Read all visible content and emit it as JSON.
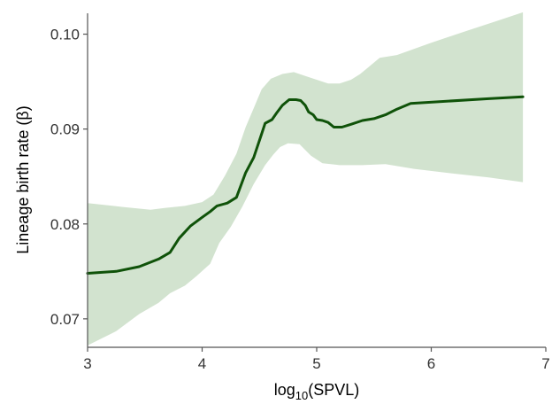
{
  "chart_data": {
    "type": "line",
    "title": "",
    "xlabel": {
      "prefix": "log",
      "subscript": "10",
      "suffix": "(SPVL)"
    },
    "ylabel": "Lineage birth rate (β)",
    "xlim": [
      3,
      7
    ],
    "ylim": [
      0.067,
      0.1022
    ],
    "xticks": [
      3,
      4,
      5,
      6,
      7
    ],
    "yticks": [
      0.07,
      0.08,
      0.09,
      0.1
    ],
    "ytick_labels": [
      "0.07",
      "0.08",
      "0.09",
      "0.10"
    ],
    "grid": false,
    "colors": {
      "line": "#0f5209",
      "band": "#d2e3cf",
      "axis": "#555555"
    },
    "series": [
      {
        "values": [
          [
            3.0,
            0.0748
          ],
          [
            3.25,
            0.075
          ],
          [
            3.45,
            0.0755
          ],
          [
            3.62,
            0.0763
          ],
          [
            3.72,
            0.077
          ],
          [
            3.8,
            0.0785
          ],
          [
            3.9,
            0.0798
          ],
          [
            4.0,
            0.0807
          ],
          [
            4.07,
            0.0813
          ],
          [
            4.13,
            0.0819
          ],
          [
            4.22,
            0.0822
          ],
          [
            4.3,
            0.0828
          ],
          [
            4.38,
            0.0854
          ],
          [
            4.45,
            0.087
          ],
          [
            4.52,
            0.0895
          ],
          [
            4.55,
            0.0906
          ],
          [
            4.61,
            0.091
          ],
          [
            4.65,
            0.0917
          ],
          [
            4.7,
            0.0925
          ],
          [
            4.76,
            0.0931
          ],
          [
            4.82,
            0.0931
          ],
          [
            4.86,
            0.093
          ],
          [
            4.9,
            0.0925
          ],
          [
            4.93,
            0.0918
          ],
          [
            4.97,
            0.0915
          ],
          [
            5.0,
            0.091
          ],
          [
            5.05,
            0.0909
          ],
          [
            5.1,
            0.0907
          ],
          [
            5.15,
            0.0902
          ],
          [
            5.22,
            0.0902
          ],
          [
            5.3,
            0.0905
          ],
          [
            5.4,
            0.0909
          ],
          [
            5.5,
            0.0911
          ],
          [
            5.6,
            0.0915
          ],
          [
            5.7,
            0.0921
          ],
          [
            5.82,
            0.0927
          ],
          [
            6.5,
            0.0932
          ],
          [
            6.8,
            0.0934
          ]
        ],
        "lower": [
          [
            3.0,
            0.0672
          ],
          [
            3.25,
            0.0687
          ],
          [
            3.45,
            0.0705
          ],
          [
            3.62,
            0.0717
          ],
          [
            3.72,
            0.0727
          ],
          [
            3.85,
            0.0735
          ],
          [
            3.95,
            0.0745
          ],
          [
            4.07,
            0.0758
          ],
          [
            4.15,
            0.078
          ],
          [
            4.25,
            0.0797
          ],
          [
            4.35,
            0.0818
          ],
          [
            4.45,
            0.0842
          ],
          [
            4.55,
            0.0862
          ],
          [
            4.62,
            0.0873
          ],
          [
            4.68,
            0.0881
          ],
          [
            4.75,
            0.0885
          ],
          [
            4.85,
            0.0884
          ],
          [
            4.95,
            0.0872
          ],
          [
            5.05,
            0.0864
          ],
          [
            5.2,
            0.0862
          ],
          [
            5.4,
            0.0862
          ],
          [
            5.6,
            0.0863
          ],
          [
            5.85,
            0.0858
          ],
          [
            6.2,
            0.0853
          ],
          [
            6.5,
            0.0849
          ],
          [
            6.8,
            0.0844
          ]
        ],
        "upper": [
          [
            3.0,
            0.0822
          ],
          [
            3.3,
            0.0818
          ],
          [
            3.55,
            0.0815
          ],
          [
            3.68,
            0.0817
          ],
          [
            3.85,
            0.0819
          ],
          [
            4.0,
            0.0823
          ],
          [
            4.1,
            0.0831
          ],
          [
            4.2,
            0.0851
          ],
          [
            4.3,
            0.0874
          ],
          [
            4.38,
            0.0902
          ],
          [
            4.45,
            0.0922
          ],
          [
            4.52,
            0.0942
          ],
          [
            4.6,
            0.0953
          ],
          [
            4.7,
            0.0958
          ],
          [
            4.8,
            0.096
          ],
          [
            4.9,
            0.0956
          ],
          [
            5.0,
            0.0952
          ],
          [
            5.1,
            0.0948
          ],
          [
            5.2,
            0.0948
          ],
          [
            5.3,
            0.0952
          ],
          [
            5.38,
            0.0958
          ],
          [
            5.45,
            0.0965
          ],
          [
            5.55,
            0.0975
          ],
          [
            5.7,
            0.0978
          ],
          [
            6.0,
            0.0991
          ],
          [
            6.3,
            0.1003
          ],
          [
            6.6,
            0.1015
          ],
          [
            6.8,
            0.1023
          ]
        ]
      }
    ]
  }
}
